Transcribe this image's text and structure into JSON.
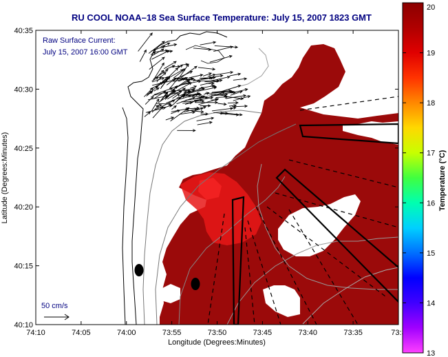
{
  "title": "RU COOL  NOAA–18  Sea Surface Temperature:  July 15, 2007 1823 GMT",
  "current_label_line1": "Raw Surface Current:",
  "current_label_line2": "July 15, 2007 16:00 GMT",
  "scale_label": "50 cm/s",
  "x_axis_label": "Longitude (Degrees:Minutes)",
  "y_axis_label": "Latitude (Degrees:Minutes)",
  "x_ticks": [
    "74:10",
    "74:05",
    "74:00",
    "73:55",
    "73:50",
    "73:45",
    "73:40",
    "73:35",
    "73:3"
  ],
  "y_ticks": [
    "40:35",
    "40:30",
    "40:25",
    "40:20",
    "40:15",
    "40:10"
  ],
  "colorbar": {
    "label": "Temperature (°C)",
    "ticks": [
      "20",
      "19",
      "18",
      "17",
      "16",
      "15",
      "14",
      "13"
    ],
    "colors": [
      "#8b0000",
      "#b00000",
      "#e00000",
      "#ff3300",
      "#ff8800",
      "#ffd800",
      "#c8ff00",
      "#40ff40",
      "#00ffb0",
      "#00d0ff",
      "#0070ff",
      "#0000ff",
      "#4000ff",
      "#a000ff",
      "#ff40ff"
    ]
  }
}
